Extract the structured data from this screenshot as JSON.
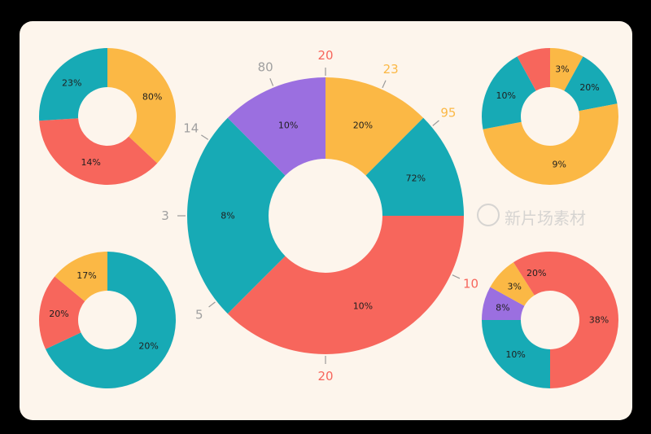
{
  "colors": {
    "coral": "#f7665c",
    "yellow": "#fbb845",
    "teal": "#17aab5",
    "purple": "#9b6fe0",
    "grey": "#a0a0a0"
  },
  "watermark": {
    "text": "新片场素材"
  },
  "chart_data": [
    {
      "id": "main",
      "type": "pie",
      "variant": "donut",
      "slices": [
        {
          "label": "20%",
          "value": 12.5,
          "color": "yellow"
        },
        {
          "label": "72%",
          "value": 12.5,
          "color": "teal"
        },
        {
          "label": "10%",
          "value": 37.5,
          "color": "coral"
        },
        {
          "label": "8%",
          "value": 25,
          "color": "teal"
        },
        {
          "label": "10%",
          "value": 12.5,
          "color": "purple"
        }
      ],
      "callouts": [
        {
          "text": "20",
          "color": "coral"
        },
        {
          "text": "23",
          "color": "yellow"
        },
        {
          "text": "95",
          "color": "yellow"
        },
        {
          "text": "10",
          "color": "coral"
        },
        {
          "text": "20",
          "color": "coral"
        },
        {
          "text": "5",
          "color": "grey"
        },
        {
          "text": "3",
          "color": "grey"
        },
        {
          "text": "14",
          "color": "grey"
        },
        {
          "text": "80",
          "color": "grey"
        }
      ]
    },
    {
      "id": "top-left",
      "type": "pie",
      "variant": "donut",
      "slices": [
        {
          "label": "80%",
          "value": 37,
          "color": "yellow"
        },
        {
          "label": "14%",
          "value": 37,
          "color": "coral"
        },
        {
          "label": "23%",
          "value": 26,
          "color": "teal"
        }
      ]
    },
    {
      "id": "top-right",
      "type": "pie",
      "variant": "donut",
      "slices": [
        {
          "label": "3%",
          "value": 8,
          "color": "yellow"
        },
        {
          "label": "20%",
          "value": 14,
          "color": "teal"
        },
        {
          "label": "9%",
          "value": 50,
          "color": "yellow"
        },
        {
          "label": "10%",
          "value": 20,
          "color": "teal"
        },
        {
          "label": "",
          "value": 8,
          "color": "coral"
        }
      ]
    },
    {
      "id": "bottom-left",
      "type": "pie",
      "variant": "donut",
      "slices": [
        {
          "label": "20%",
          "value": 68,
          "color": "teal"
        },
        {
          "label": "20%",
          "value": 18,
          "color": "coral"
        },
        {
          "label": "17%",
          "value": 14,
          "color": "yellow"
        }
      ]
    },
    {
      "id": "bottom-right",
      "type": "pie",
      "variant": "donut",
      "slices": [
        {
          "label": "38%",
          "value": 50,
          "color": "coral"
        },
        {
          "label": "10%",
          "value": 25,
          "color": "teal"
        },
        {
          "label": "8%",
          "value": 8,
          "color": "purple"
        },
        {
          "label": "3%",
          "value": 8,
          "color": "yellow"
        },
        {
          "label": "20%",
          "value": 9,
          "color": "coral"
        }
      ]
    }
  ]
}
